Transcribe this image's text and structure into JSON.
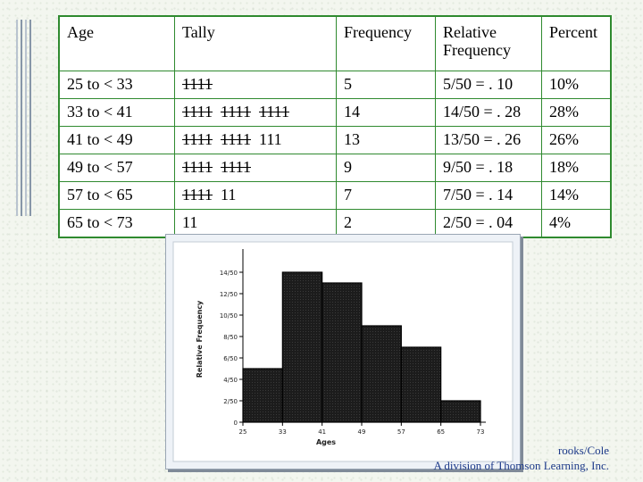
{
  "table": {
    "headers": [
      "Age",
      "Tally",
      "Frequency",
      "Relative Frequency",
      "Percent"
    ],
    "rows": [
      {
        "age": "25 to < 33",
        "tally": "1111",
        "frequency": "5",
        "relative": "5/50 = . 10",
        "percent": "10%"
      },
      {
        "age": "33 to < 41",
        "tally": "1111  1111  1111",
        "frequency": "14",
        "relative": "14/50 = . 28",
        "percent": "28%"
      },
      {
        "age": "41 to < 49",
        "tally": "1111  1111  111",
        "frequency": "13",
        "relative": "13/50 = . 26",
        "percent": "26%"
      },
      {
        "age": "49 to < 57",
        "tally": "1111  1111",
        "frequency": "9",
        "relative": "9/50 = . 18",
        "percent": "18%"
      },
      {
        "age": "57 to < 65",
        "tally": "1111  11",
        "frequency": "7",
        "relative": "7/50 = . 14",
        "percent": "14%"
      },
      {
        "age": "65 to < 73",
        "tally": "11",
        "frequency": "2",
        "relative": "2/50 = . 04",
        "percent": "4%"
      }
    ]
  },
  "chart_data": {
    "type": "bar",
    "xlabel": "Ages",
    "ylabel": "Relative Frequency",
    "bin_edges": [
      25,
      33,
      41,
      49,
      57,
      65,
      73
    ],
    "x_tick_labels": [
      "25",
      "33",
      "41",
      "49",
      "57",
      "65",
      "73"
    ],
    "values": [
      0.1,
      0.28,
      0.26,
      0.18,
      0.14,
      0.04
    ],
    "ylim": [
      0,
      0.31
    ],
    "y_ticks": [
      0,
      0.04,
      0.08,
      0.12,
      0.16,
      0.2,
      0.24,
      0.28
    ],
    "y_tick_labels": [
      "0",
      "2/50",
      "4/50",
      "6/50",
      "8/50",
      "10/50",
      "12/50",
      "14/50"
    ],
    "grid": false,
    "legend": "none",
    "bar_fill": "#222222",
    "bar_edge": "#000000"
  },
  "footer": {
    "line1": "rooks/Cole",
    "line2": "A division of Thomson Learning, Inc."
  },
  "colors": {
    "table_border": "#2f8a2f",
    "footer_text": "#1d3a8a",
    "chart_background": "#eef2f7"
  }
}
